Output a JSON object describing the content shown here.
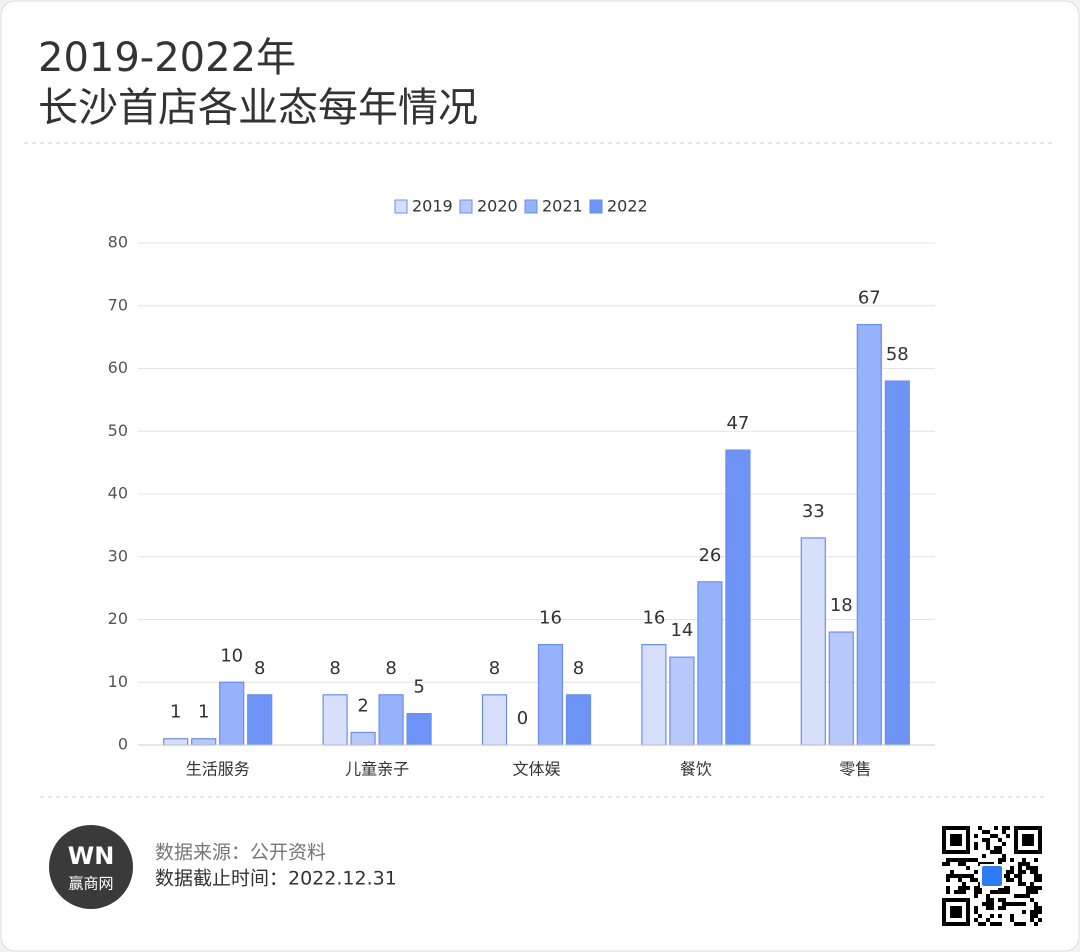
{
  "title": [
    "2019-2022年",
    "长沙首店各业态每年情况"
  ],
  "chart_data": {
    "type": "bar",
    "categories": [
      "生活服务",
      "儿童亲子",
      "文体娱",
      "餐饮",
      "零售"
    ],
    "series": [
      {
        "name": "2019",
        "color": "#d6e0fb",
        "values": [
          1,
          8,
          8,
          16,
          33
        ]
      },
      {
        "name": "2020",
        "color": "#b6c9fa",
        "values": [
          1,
          2,
          0,
          14,
          18
        ]
      },
      {
        "name": "2021",
        "color": "#95b2fb",
        "values": [
          10,
          8,
          16,
          26,
          67
        ]
      },
      {
        "name": "2022",
        "color": "#6e93f7",
        "values": [
          8,
          5,
          8,
          47,
          58
        ]
      }
    ],
    "ylim": [
      0,
      80
    ],
    "yticks": [
      0,
      10,
      20,
      30,
      40,
      50,
      60,
      70,
      80
    ],
    "grid": true,
    "legend": "top",
    "value_labels_shown": true
  },
  "footer": {
    "logo_mark": "WN",
    "logo_name": "赢商网",
    "source": "数据来源：公开资料",
    "cutoff": "数据截止时间：2022.12.31"
  }
}
